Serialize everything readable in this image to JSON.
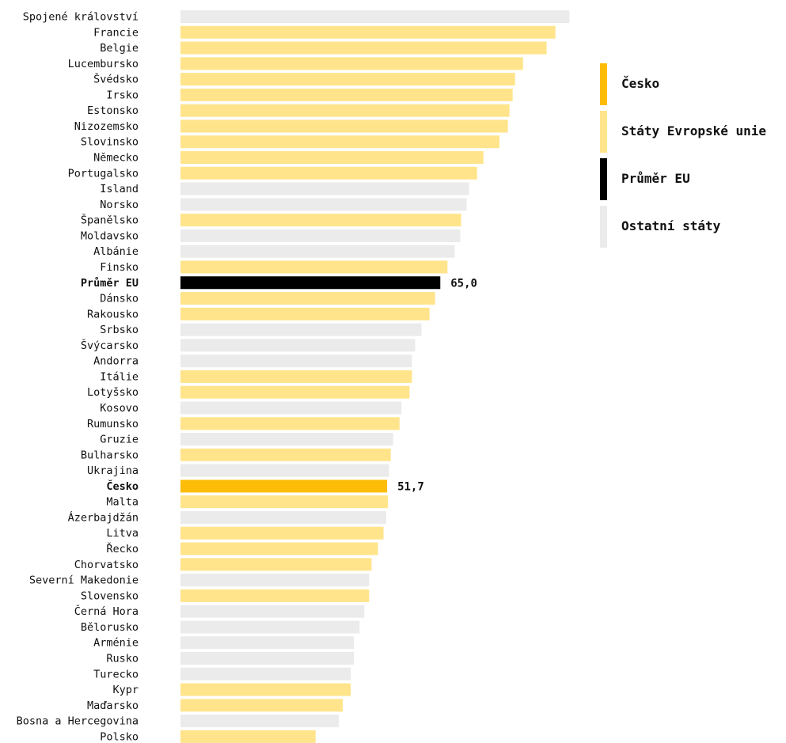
{
  "chart_data": {
    "type": "bar",
    "orientation": "horizontal",
    "colors": {
      "cesko": "#FCBC07",
      "eu": "#FFE48B",
      "eu_average": "#000000",
      "other": "#EBEBEB"
    },
    "legend": [
      {
        "key": "cesko",
        "label": "Česko",
        "color": "#FCBC07"
      },
      {
        "key": "eu",
        "label": "Státy Evropské unie",
        "color": "#FFE48B"
      },
      {
        "key": "eu_average",
        "label": "Průměr EU",
        "color": "#000000"
      },
      {
        "key": "other",
        "label": "Ostatní státy",
        "color": "#EBEBEB"
      }
    ],
    "legend_position": "right",
    "grid": false,
    "xlim": [
      0,
      100
    ],
    "bars": [
      {
        "label": "Spojené království",
        "value": 97.3,
        "group": "other"
      },
      {
        "label": "Francie",
        "value": 93.8,
        "group": "eu"
      },
      {
        "label": "Belgie",
        "value": 91.6,
        "group": "eu"
      },
      {
        "label": "Lucembursko",
        "value": 85.7,
        "group": "eu"
      },
      {
        "label": "Švédsko",
        "value": 83.7,
        "group": "eu"
      },
      {
        "label": "Irsko",
        "value": 83.1,
        "group": "eu"
      },
      {
        "label": "Estonsko",
        "value": 82.3,
        "group": "eu"
      },
      {
        "label": "Nizozemsko",
        "value": 81.9,
        "group": "eu"
      },
      {
        "label": "Slovinsko",
        "value": 79.8,
        "group": "eu"
      },
      {
        "label": "Německo",
        "value": 75.8,
        "group": "eu"
      },
      {
        "label": "Portugalsko",
        "value": 74.2,
        "group": "eu"
      },
      {
        "label": "Island",
        "value": 72.2,
        "group": "other"
      },
      {
        "label": "Norsko",
        "value": 71.6,
        "group": "other"
      },
      {
        "label": "Španělsko",
        "value": 70.2,
        "group": "eu"
      },
      {
        "label": "Moldavsko",
        "value": 70.0,
        "group": "other"
      },
      {
        "label": "Albánie",
        "value": 68.6,
        "group": "other"
      },
      {
        "label": "Finsko",
        "value": 66.8,
        "group": "eu"
      },
      {
        "label": "Průměr EU",
        "value": 65.0,
        "group": "eu_average",
        "value_label": "65,0",
        "bold": true
      },
      {
        "label": "Dánsko",
        "value": 63.7,
        "group": "eu"
      },
      {
        "label": "Rakousko",
        "value": 62.3,
        "group": "eu"
      },
      {
        "label": "Srbsko",
        "value": 60.3,
        "group": "other"
      },
      {
        "label": "Švýcarsko",
        "value": 58.7,
        "group": "other"
      },
      {
        "label": "Andorra",
        "value": 57.9,
        "group": "other"
      },
      {
        "label": "Itálie",
        "value": 57.9,
        "group": "eu"
      },
      {
        "label": "Lotyšsko",
        "value": 57.3,
        "group": "eu"
      },
      {
        "label": "Kosovo",
        "value": 55.3,
        "group": "other"
      },
      {
        "label": "Rumunsko",
        "value": 54.8,
        "group": "eu"
      },
      {
        "label": "Gruzie",
        "value": 53.2,
        "group": "other"
      },
      {
        "label": "Bulharsko",
        "value": 52.6,
        "group": "eu"
      },
      {
        "label": "Ukrajina",
        "value": 52.2,
        "group": "other"
      },
      {
        "label": "Česko",
        "value": 51.7,
        "group": "cesko",
        "value_label": "51,7",
        "bold": true
      },
      {
        "label": "Malta",
        "value": 51.9,
        "group": "eu"
      },
      {
        "label": "Ázerbajdžán",
        "value": 51.5,
        "group": "other"
      },
      {
        "label": "Litva",
        "value": 50.8,
        "group": "eu"
      },
      {
        "label": "Řecko",
        "value": 49.4,
        "group": "eu"
      },
      {
        "label": "Chorvatsko",
        "value": 47.8,
        "group": "eu"
      },
      {
        "label": "Severní Makedonie",
        "value": 47.2,
        "group": "other"
      },
      {
        "label": "Slovensko",
        "value": 47.2,
        "group": "eu"
      },
      {
        "label": "Černá Hora",
        "value": 46.0,
        "group": "other"
      },
      {
        "label": "Bělorusko",
        "value": 44.8,
        "group": "other"
      },
      {
        "label": "Arménie",
        "value": 43.4,
        "group": "other"
      },
      {
        "label": "Rusko",
        "value": 43.4,
        "group": "other"
      },
      {
        "label": "Turecko",
        "value": 42.6,
        "group": "other"
      },
      {
        "label": "Kypr",
        "value": 42.6,
        "group": "eu"
      },
      {
        "label": "Maďarsko",
        "value": 40.6,
        "group": "eu"
      },
      {
        "label": "Bosna a Hercegovina",
        "value": 39.6,
        "group": "other"
      },
      {
        "label": "Polsko",
        "value": 33.8,
        "group": "eu"
      }
    ]
  }
}
